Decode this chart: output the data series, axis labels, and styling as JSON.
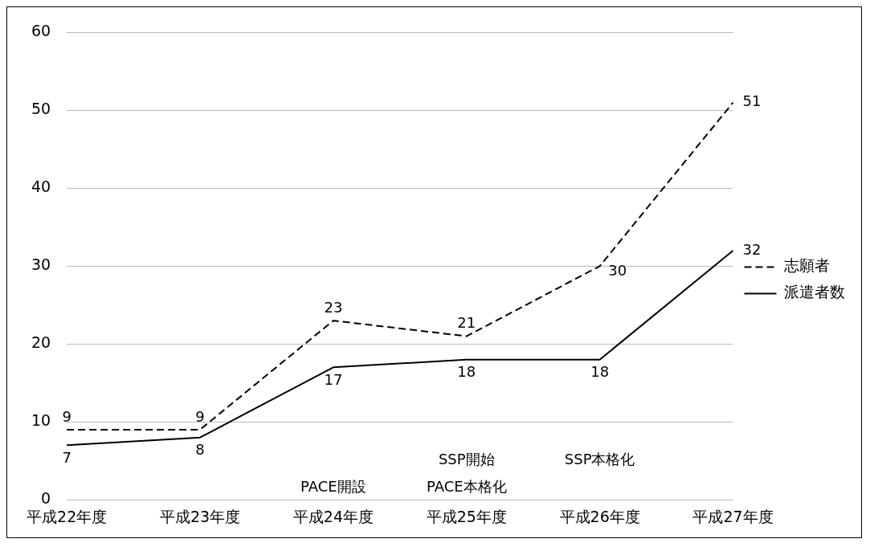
{
  "chart_data": {
    "type": "line",
    "categories": [
      "平成22年度",
      "平成23年度",
      "平成24年度",
      "平成25年度",
      "平成26年度",
      "平成27年度"
    ],
    "series": [
      {
        "name": "志願者",
        "color": "#000000",
        "line_style": "dashed",
        "values": [
          9,
          9,
          23,
          21,
          30,
          51
        ]
      },
      {
        "name": "派遣者数",
        "color": "#000000",
        "line_style": "solid",
        "values": [
          7,
          8,
          17,
          18,
          18,
          32
        ]
      }
    ],
    "ylim": [
      0,
      60
    ],
    "yticks": [
      0,
      10,
      20,
      30,
      40,
      50,
      60
    ],
    "grid": "y",
    "legend": "right",
    "marker": "none",
    "data_labels": true,
    "annotations": [
      "PACE開設",
      "SSP開始",
      "PACE本格化",
      "SSP本格化"
    ]
  }
}
